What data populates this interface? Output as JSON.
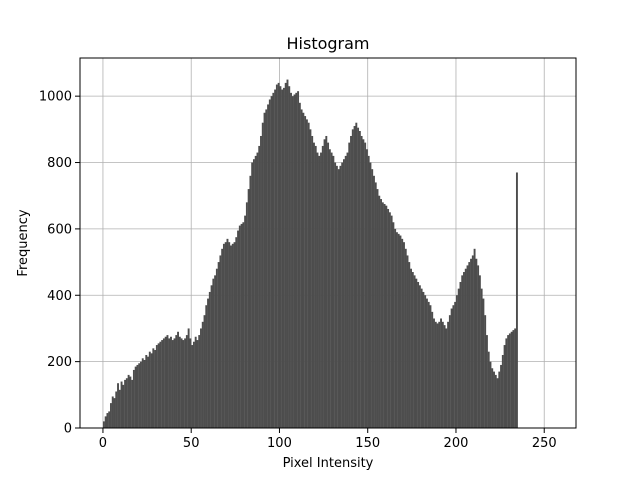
{
  "chart_data": {
    "type": "bar",
    "title": "Histogram",
    "xlabel": "Pixel Intensity",
    "ylabel": "Frequency",
    "xlim": [
      -13,
      268
    ],
    "ylim": [
      0,
      1115
    ],
    "xticks": [
      0,
      50,
      100,
      150,
      200,
      250
    ],
    "yticks": [
      0,
      200,
      400,
      600,
      800,
      1000
    ],
    "grid": true,
    "bar_color": "#4d4d4d",
    "series": [
      {
        "values": [
          20,
          35,
          45,
          50,
          75,
          95,
          90,
          110,
          135,
          115,
          140,
          130,
          145,
          150,
          160,
          155,
          145,
          175,
          185,
          190,
          195,
          200,
          210,
          205,
          220,
          215,
          230,
          225,
          240,
          235,
          250,
          255,
          260,
          265,
          270,
          275,
          280,
          270,
          275,
          265,
          270,
          280,
          290,
          275,
          270,
          265,
          270,
          280,
          300,
          270,
          250,
          260,
          275,
          265,
          280,
          300,
          320,
          340,
          370,
          390,
          410,
          430,
          450,
          460,
          480,
          500,
          520,
          540,
          555,
          560,
          570,
          560,
          550,
          555,
          560,
          575,
          595,
          610,
          615,
          620,
          640,
          680,
          720,
          760,
          800,
          810,
          820,
          830,
          850,
          880,
          920,
          950,
          960,
          975,
          990,
          1000,
          1010,
          1020,
          1035,
          1040,
          1030,
          1020,
          1025,
          1040,
          1050,
          1030,
          1010,
          1000,
          1005,
          1010,
          1015,
          980,
          960,
          950,
          940,
          930,
          920,
          900,
          880,
          860,
          850,
          830,
          820,
          830,
          850,
          870,
          880,
          860,
          840,
          830,
          820,
          800,
          790,
          780,
          790,
          800,
          810,
          820,
          830,
          860,
          880,
          900,
          910,
          920,
          905,
          895,
          880,
          870,
          860,
          840,
          820,
          800,
          780,
          760,
          740,
          720,
          700,
          690,
          680,
          675,
          670,
          660,
          650,
          640,
          620,
          600,
          590,
          585,
          580,
          570,
          560,
          540,
          520,
          500,
          480,
          470,
          460,
          450,
          440,
          430,
          420,
          410,
          400,
          390,
          380,
          370,
          350,
          330,
          320,
          315,
          320,
          330,
          320,
          310,
          300,
          320,
          340,
          360,
          370,
          380,
          400,
          420,
          440,
          460,
          470,
          480,
          490,
          500,
          510,
          520,
          540,
          510,
          490,
          460,
          420,
          390,
          340,
          280,
          230,
          200,
          180,
          170,
          160,
          150,
          170,
          190,
          220,
          250,
          270,
          280,
          285,
          290,
          295,
          300,
          770
        ]
      }
    ]
  }
}
